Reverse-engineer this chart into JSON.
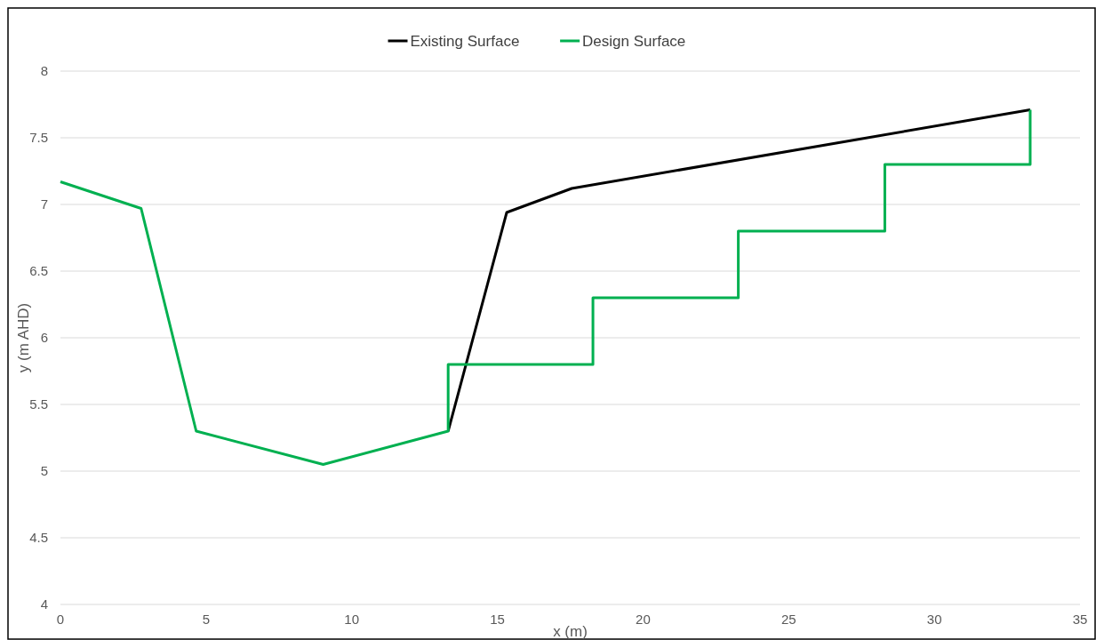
{
  "chart_data": {
    "type": "line",
    "xlabel": "x (m)",
    "ylabel": "y (m AHD)",
    "xlim": [
      0,
      35
    ],
    "xticks": [
      0,
      5,
      10,
      15,
      20,
      25,
      30,
      35
    ],
    "ylim": [
      4,
      8
    ],
    "yticks": [
      4,
      4.5,
      5,
      5.5,
      6,
      6.5,
      7,
      7.5,
      8
    ],
    "grid": "y",
    "legend": "top",
    "series": [
      {
        "name": "Existing Surface",
        "color": "#000000",
        "x": [
          13.31,
          15.32,
          17.55,
          33.29
        ],
        "values": [
          5.3,
          6.94,
          7.12,
          7.71
        ]
      },
      {
        "name": "Design Surface",
        "color": "#00b050",
        "x": [
          0,
          2.77,
          4.32,
          4.66,
          9.02,
          13.31,
          13.31,
          18.28,
          18.28,
          23.27,
          23.27,
          28.3,
          28.3,
          33.29,
          33.29
        ],
        "values": [
          7.17,
          6.97,
          5.6,
          5.3,
          5.05,
          5.3,
          5.8,
          5.8,
          6.3,
          6.3,
          6.8,
          6.8,
          7.3,
          7.3,
          7.71
        ]
      }
    ]
  }
}
